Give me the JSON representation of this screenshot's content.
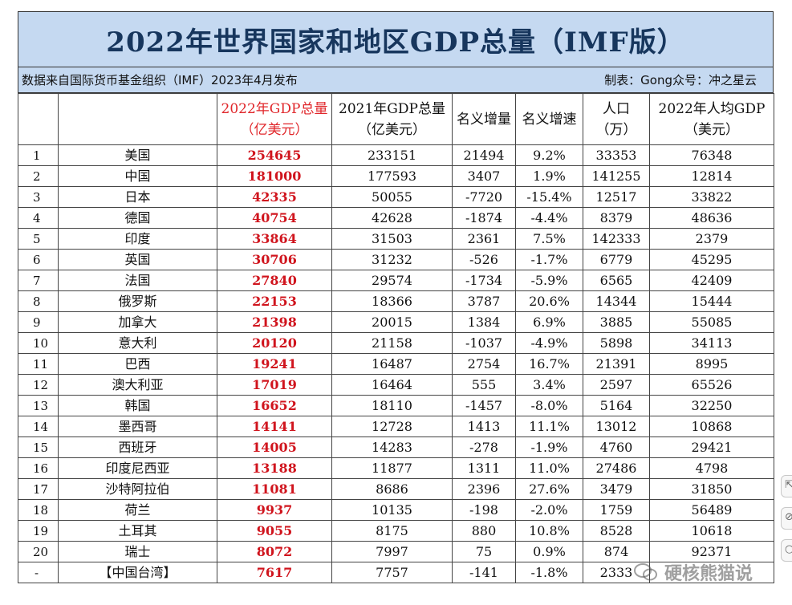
{
  "title": "2022年世界国家和地区GDP总量（IMF版）",
  "source_note": "数据来自国际货币基金组织（IMF）2023年4月发布",
  "credit": "制表：Gong众号：冲之星云",
  "headers": [
    {
      "line1": "",
      "line2": ""
    },
    {
      "line1": "",
      "line2": ""
    },
    {
      "line1": "2022年GDP总量",
      "line2": "（亿美元）"
    },
    {
      "line1": "2021年GDP总量",
      "line2": "（亿美元）"
    },
    {
      "line1": "名义增量",
      "line2": ""
    },
    {
      "line1": "名义增速",
      "line2": ""
    },
    {
      "line1": "人口",
      "line2": "（万）"
    },
    {
      "line1": "2022年人均GDP",
      "line2": "（美元）"
    }
  ],
  "rows": [
    [
      "1",
      "美国",
      "254645",
      "233151",
      "21494",
      "9.2%",
      "33353",
      "76348"
    ],
    [
      "2",
      "中国",
      "181000",
      "177593",
      "3407",
      "1.9%",
      "141255",
      "12814"
    ],
    [
      "3",
      "日本",
      "42335",
      "50055",
      "-7720",
      "-15.4%",
      "12517",
      "33822"
    ],
    [
      "4",
      "德国",
      "40754",
      "42628",
      "-1874",
      "-4.4%",
      "8379",
      "48636"
    ],
    [
      "5",
      "印度",
      "33864",
      "31503",
      "2361",
      "7.5%",
      "142333",
      "2379"
    ],
    [
      "6",
      "英国",
      "30706",
      "31232",
      "-526",
      "-1.7%",
      "6779",
      "45295"
    ],
    [
      "7",
      "法国",
      "27840",
      "29574",
      "-1734",
      "-5.9%",
      "6565",
      "42409"
    ],
    [
      "8",
      "俄罗斯",
      "22153",
      "18366",
      "3787",
      "20.6%",
      "14344",
      "15444"
    ],
    [
      "9",
      "加拿大",
      "21398",
      "20015",
      "1384",
      "6.9%",
      "3885",
      "55085"
    ],
    [
      "10",
      "意大利",
      "20120",
      "21158",
      "-1037",
      "-4.9%",
      "5898",
      "34113"
    ],
    [
      "11",
      "巴西",
      "19241",
      "16487",
      "2754",
      "16.7%",
      "21391",
      "8995"
    ],
    [
      "12",
      "澳大利亚",
      "17019",
      "16464",
      "555",
      "3.4%",
      "2597",
      "65526"
    ],
    [
      "13",
      "韩国",
      "16652",
      "18110",
      "-1457",
      "-8.0%",
      "5164",
      "32250"
    ],
    [
      "14",
      "墨西哥",
      "14141",
      "12728",
      "1413",
      "11.1%",
      "13012",
      "10868"
    ],
    [
      "15",
      "西班牙",
      "14005",
      "14283",
      "-278",
      "-1.9%",
      "4760",
      "29421"
    ],
    [
      "16",
      "印度尼西亚",
      "13188",
      "11877",
      "1311",
      "11.0%",
      "27486",
      "4798"
    ],
    [
      "17",
      "沙特阿拉伯",
      "11081",
      "8686",
      "2396",
      "27.6%",
      "3479",
      "31850"
    ],
    [
      "18",
      "荷兰",
      "9937",
      "10135",
      "-198",
      "-2.0%",
      "1759",
      "56489"
    ],
    [
      "19",
      "土耳其",
      "9055",
      "8175",
      "880",
      "10.8%",
      "8528",
      "10618"
    ],
    [
      "20",
      "瑞士",
      "8072",
      "7997",
      "75",
      "0.9%",
      "874",
      "92371"
    ],
    [
      "-",
      "【中国台湾】",
      "7617",
      "7757",
      "-141",
      "-1.8%",
      "2333",
      ""
    ]
  ],
  "watermark_text": "硬核熊猫说",
  "colors": {
    "title_bg": "#c5d9f1",
    "title_text": "#17365d",
    "gdp_highlight": "#d0141d"
  },
  "side_icons": [
    "share-icon",
    "link-icon",
    "search-icon"
  ]
}
